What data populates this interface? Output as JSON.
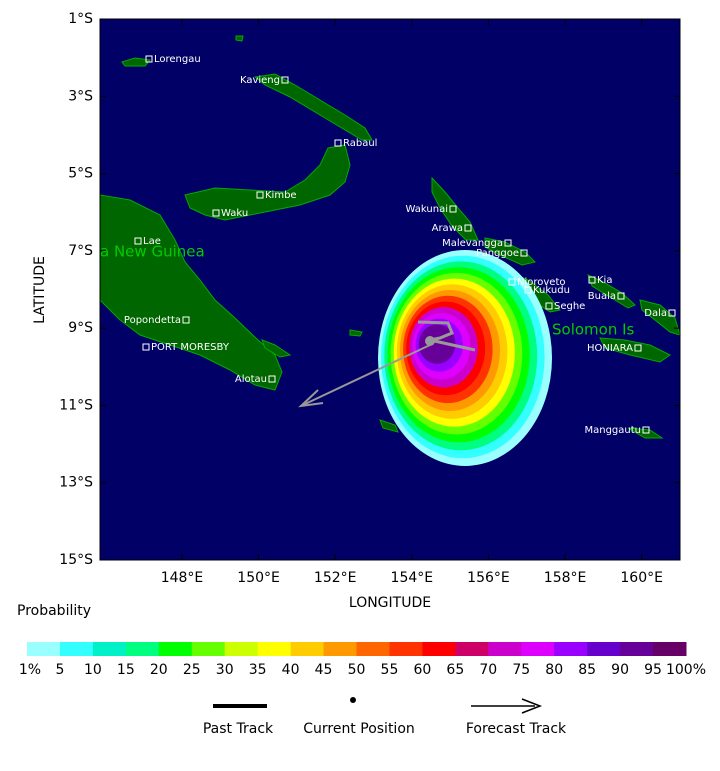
{
  "map": {
    "xlabel": "LONGITUDE",
    "ylabel": "LATITUDE",
    "xlim": [
      145.86,
      161
    ],
    "ylim": [
      -15,
      -1
    ],
    "xticks": [
      {
        "value": 148,
        "label": "148°E"
      },
      {
        "value": 150,
        "label": "150°E"
      },
      {
        "value": 152,
        "label": "152°E"
      },
      {
        "value": 154,
        "label": "154°E"
      },
      {
        "value": 156,
        "label": "156°E"
      },
      {
        "value": 158,
        "label": "158°E"
      },
      {
        "value": 160,
        "label": "160°E"
      }
    ],
    "yticks": [
      {
        "value": -1,
        "label": "1°S"
      },
      {
        "value": -3,
        "label": "3°S"
      },
      {
        "value": -5,
        "label": "5°S"
      },
      {
        "value": -7,
        "label": "7°S"
      },
      {
        "value": -9,
        "label": "9°S"
      },
      {
        "value": -11,
        "label": "11°S"
      },
      {
        "value": -13,
        "label": "13°S"
      },
      {
        "value": -15,
        "label": "15°S"
      }
    ],
    "regions": [
      "a New Guinea",
      "Solomon Is"
    ],
    "places": [
      "Lorengau",
      "Kavieng",
      "Rabaul",
      "Kimbe",
      "Waku",
      "Lae",
      "Popondetta",
      "PORT MORESBY",
      "Alotau",
      "Wakunai",
      "Arawa",
      "Malevangga",
      "Panggoe",
      "Njoroveto",
      "Kukudu",
      "Seghe",
      "Kia",
      "Buala",
      "Dala",
      "HONIARA",
      "Manggautu"
    ]
  },
  "colorbar": {
    "title": "Probability",
    "labels": [
      "1%",
      "5",
      "10",
      "15",
      "20",
      "25",
      "30",
      "35",
      "40",
      "45",
      "50",
      "55",
      "60",
      "65",
      "70",
      "75",
      "80",
      "85",
      "90",
      "95",
      "100%"
    ],
    "colors": [
      "#99ffff",
      "#33ffff",
      "#00f0c8",
      "#00ff80",
      "#00ff00",
      "#66ff00",
      "#ccff00",
      "#ffff00",
      "#ffcc00",
      "#ff9900",
      "#ff6600",
      "#ff3300",
      "#ff0000",
      "#cc0066",
      "#cc00cc",
      "#dd00ff",
      "#9900ff",
      "#6600cc",
      "#660099",
      "#660066"
    ]
  },
  "legend": [
    "Past Track",
    "Current Position",
    "Forecast Track"
  ]
}
